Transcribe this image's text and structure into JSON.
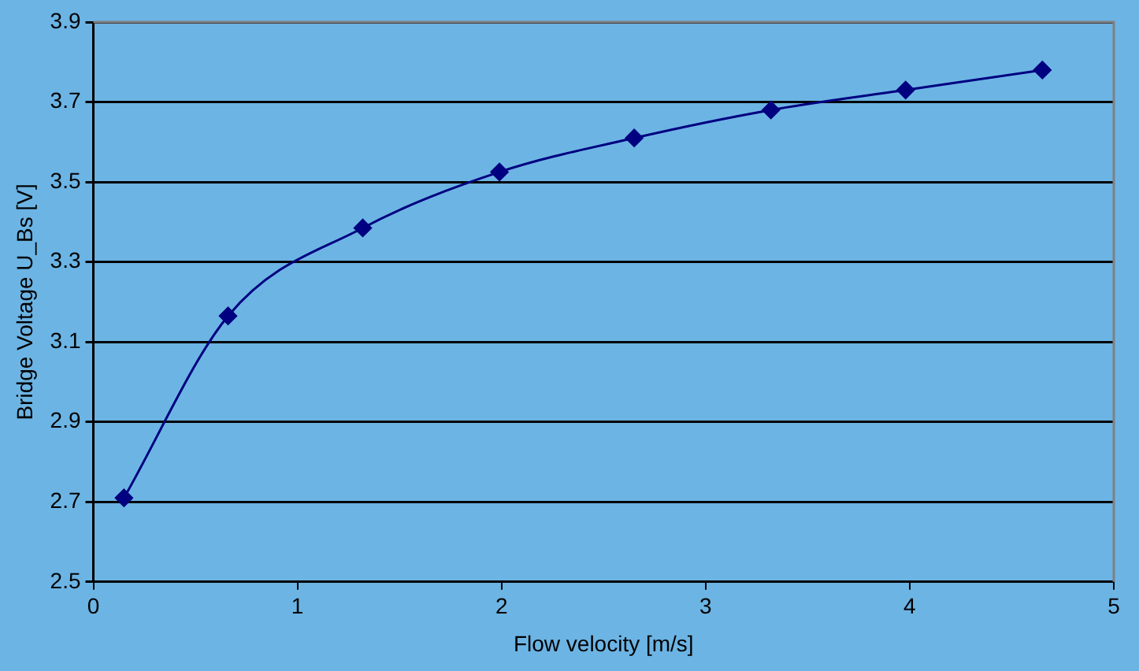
{
  "chart_data": {
    "type": "line",
    "xlabel": "Flow velocity [m/s]",
    "ylabel": "Bridge Voltage U_Bs [V]",
    "x": [
      0.15,
      0.66,
      1.32,
      1.99,
      2.65,
      3.32,
      3.98,
      4.65
    ],
    "series": [
      {
        "color": "#000080",
        "values": [
          2.71,
          3.165,
          3.385,
          3.525,
          3.61,
          3.68,
          3.73,
          3.78
        ]
      }
    ],
    "xlim": [
      0,
      5
    ],
    "xticks": [
      0,
      1,
      2,
      3,
      4,
      5
    ],
    "ylim": [
      2.5,
      3.9
    ],
    "yticks": [
      2.5,
      2.7,
      2.9,
      3.1,
      3.3,
      3.5,
      3.7,
      3.9
    ],
    "grid": "y",
    "marker": "diamond",
    "line_style": "solid",
    "legend": false
  }
}
